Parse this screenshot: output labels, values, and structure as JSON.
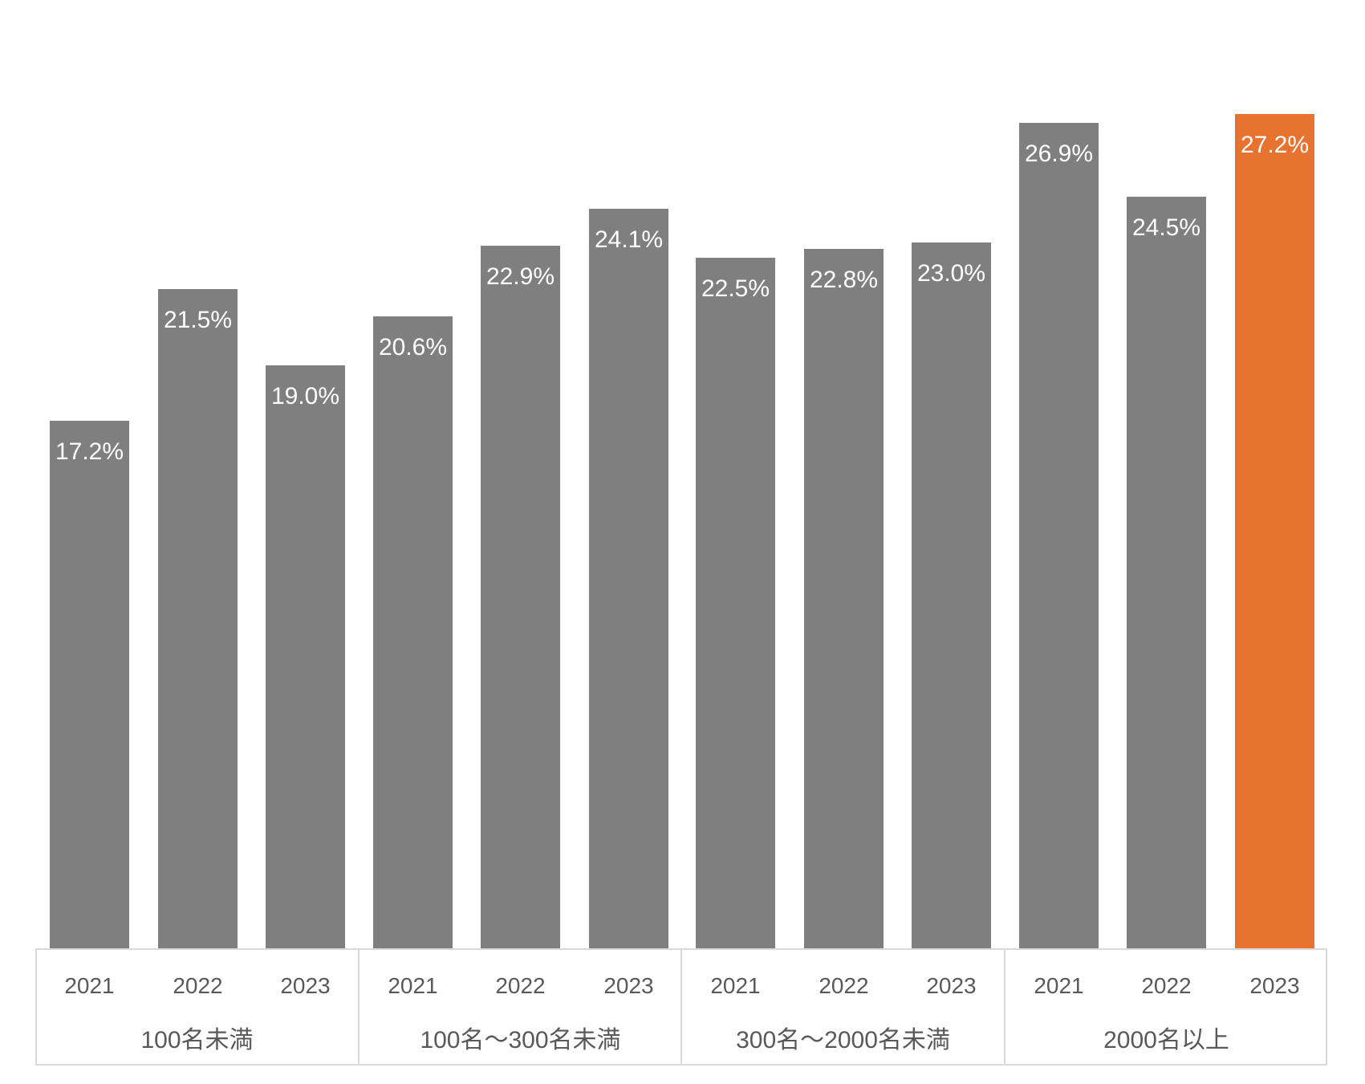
{
  "chart_data": {
    "type": "bar",
    "title": "",
    "unit": "%",
    "years": [
      "2021",
      "2022",
      "2023"
    ],
    "groups": [
      {
        "label": "100名未満",
        "values": [
          17.2,
          21.5,
          19.0
        ],
        "value_labels": [
          "17.2%",
          "21.5%",
          "19.0%"
        ]
      },
      {
        "label": "100名〜300名未満",
        "values": [
          20.6,
          22.9,
          24.1
        ],
        "value_labels": [
          "20.6%",
          "22.9%",
          "24.1%"
        ]
      },
      {
        "label": "300名〜2000名未満",
        "values": [
          22.5,
          22.8,
          23.0
        ],
        "value_labels": [
          "22.5%",
          "22.8%",
          "23.0%"
        ]
      },
      {
        "label": "2000名以上",
        "values": [
          26.9,
          24.5,
          27.2
        ],
        "value_labels": [
          "26.9%",
          "24.5%",
          "27.2%"
        ]
      }
    ],
    "highlight": {
      "group_index": 3,
      "bar_index": 2
    },
    "colors": {
      "bar": "#7F7F7F",
      "highlight_bar": "#E8722F",
      "value_label_text": "#FFFFFF",
      "axis_text": "#595959",
      "axis_border": "#D9D9D9",
      "background": "#FFFFFF"
    },
    "axes": {
      "y_axis_visible": false,
      "gridlines": false,
      "ylim": [
        0,
        30
      ]
    },
    "legend": {
      "visible": false
    }
  }
}
